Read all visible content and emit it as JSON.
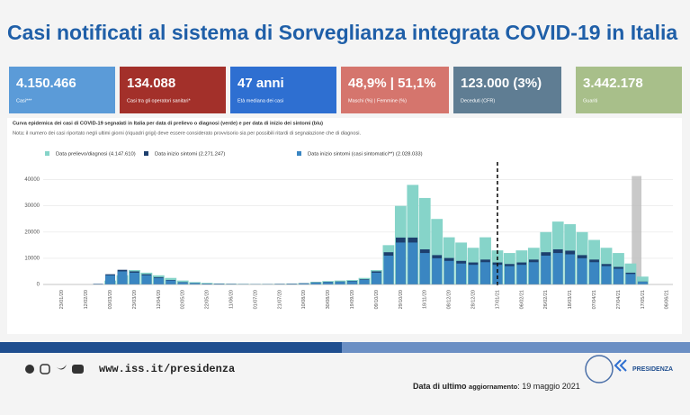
{
  "header": {
    "title": "Casi notificati al sistema di Sorveglianza integrata COVID-19 in Italia"
  },
  "cards": [
    {
      "value": "4.150.466",
      "label": "Casi***",
      "color": "#5b9bd8"
    },
    {
      "value": "134.088",
      "label": "Casi tra gli operatori sanitari*",
      "color": "#a3302a"
    },
    {
      "value": "47 anni",
      "label": "Età mediana dei casi",
      "color": "#2e6fd1"
    },
    {
      "value": "48,9% | 51,1%",
      "label": "Maschi (%) | Femmine (%)",
      "color": "#d5756d"
    },
    {
      "value": "123.000 (3%)",
      "label": "Deceduti (CFR)",
      "color": "#5f7d93"
    },
    {
      "value": "3.442.178",
      "label": "Guariti",
      "color": "#a8bf8a"
    }
  ],
  "chart_data": {
    "type": "bar",
    "title": "Curva epidemica dei casi di COVID-19 segnalati in Italia per data di prelievo o diagnosi (verde) e per data di inizio dei sintomi (blu)",
    "subtitle": "Nota: il numero dei casi riportato negli ultimi giorni (riquadri grigi) deve essere considerato provvisorio sia per possibili ritardi di segnalazione che di diagnosi.",
    "categories": [
      "23/01/20",
      null,
      "12/02/20",
      null,
      "03/03/20",
      null,
      "23/03/20",
      null,
      "12/04/20",
      null,
      "02/05/20",
      null,
      "22/05/20",
      null,
      "11/06/20",
      null,
      "01/07/20",
      null,
      "21/07/20",
      null,
      "10/08/20",
      null,
      "30/08/20",
      null,
      "19/09/20",
      null,
      "09/10/20",
      null,
      "29/10/20",
      null,
      "18/11/20",
      null,
      "08/12/20",
      null,
      "28/12/20",
      null,
      "17/01/21",
      null,
      "06/02/21",
      null,
      "26/02/21",
      null,
      "18/03/21",
      null,
      "07/04/21",
      null,
      "27/04/21",
      null,
      "17/05/21",
      null,
      "06/06/21"
    ],
    "series": [
      {
        "name": "Data prelievo/diagnosi (4.147.610)",
        "color": "#86d4c9",
        "values": [
          0,
          0,
          0,
          50,
          1500,
          3500,
          5500,
          4500,
          3500,
          2500,
          1500,
          900,
          600,
          400,
          300,
          250,
          200,
          220,
          250,
          350,
          500,
          1000,
          1300,
          1500,
          1700,
          2500,
          5500,
          15000,
          30000,
          38000,
          33000,
          25000,
          18000,
          16000,
          14000,
          18000,
          13000,
          12000,
          13000,
          14000,
          20000,
          24000,
          23000,
          20000,
          17000,
          14000,
          12000,
          8000,
          3000,
          null,
          null
        ]
      },
      {
        "name": "Data inizio sintomi (2.271.247)",
        "color": "#1d3f6e",
        "values": [
          0,
          0,
          0,
          250,
          3900,
          5600,
          5000,
          3900,
          2800,
          1700,
          900,
          560,
          340,
          280,
          220,
          170,
          170,
          170,
          220,
          280,
          450,
          780,
          1000,
          1100,
          1350,
          2000,
          5000,
          12300,
          17900,
          17900,
          13400,
          11200,
          10100,
          9000,
          8400,
          9500,
          8400,
          7800,
          8400,
          9500,
          12300,
          13400,
          12900,
          11200,
          9500,
          7800,
          6700,
          4500,
          1100,
          null,
          null
        ]
      },
      {
        "name": "Data inizio sintomi (casi sintomatici**) (2.028.033)",
        "color": "#3a86c2",
        "values": [
          0,
          0,
          0,
          200,
          3500,
          5000,
          4500,
          3500,
          2500,
          1500,
          800,
          500,
          300,
          250,
          200,
          150,
          150,
          150,
          200,
          250,
          400,
          700,
          900,
          1000,
          1200,
          1800,
          4500,
          11000,
          16000,
          16000,
          12000,
          10000,
          9000,
          8000,
          7500,
          8500,
          7500,
          7000,
          7500,
          8500,
          11000,
          12000,
          11500,
          10000,
          8500,
          7000,
          6000,
          4000,
          1000,
          null,
          null
        ]
      }
    ],
    "ylim": [
      0,
      45000
    ],
    "yticks": [
      0,
      10000,
      20000,
      30000,
      40000
    ],
    "grid": true
  },
  "footer": {
    "url": "www.iss.it/presidenza",
    "update_label": "Data di ultimo",
    "update_word": "aggiornamento",
    "update_date": ": 19 maggio 2021",
    "logo": "PRESIDENZA"
  }
}
